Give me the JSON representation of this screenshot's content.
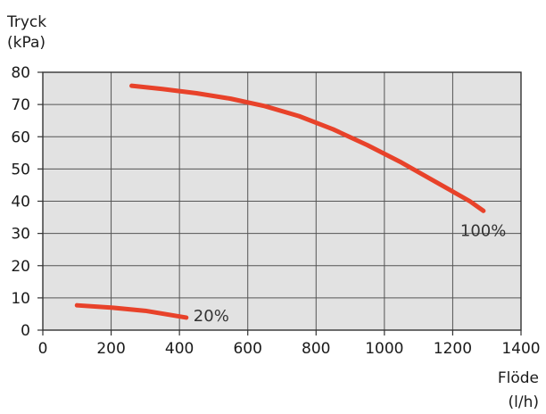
{
  "chart_data": {
    "type": "line",
    "ylabel_lines": [
      "Tryck",
      "(kPa)"
    ],
    "xlabel_lines": [
      "Flöde",
      "(l/h)"
    ],
    "xlim": [
      0,
      1400
    ],
    "ylim": [
      0,
      80
    ],
    "x_ticks": [
      0,
      200,
      400,
      600,
      800,
      1000,
      1200,
      1400
    ],
    "y_ticks": [
      0,
      10,
      20,
      30,
      40,
      50,
      60,
      70,
      80
    ],
    "grid": true,
    "colors": {
      "plot_background": "#e2e2e2",
      "line": "#e8422a",
      "grid": "#555555"
    },
    "series": [
      {
        "name": "100%",
        "x": [
          260,
          350,
          450,
          550,
          650,
          750,
          850,
          950,
          1050,
          1150,
          1250,
          1290
        ],
        "y": [
          75.8,
          74.8,
          73.5,
          71.8,
          69.5,
          66.4,
          62.3,
          57.4,
          52.0,
          46.0,
          40.0,
          37.0
        ]
      },
      {
        "name": "20%",
        "x": [
          100,
          200,
          300,
          420
        ],
        "y": [
          7.7,
          7.0,
          6.0,
          3.9
        ]
      }
    ]
  }
}
